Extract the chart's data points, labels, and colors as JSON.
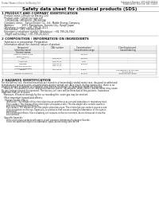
{
  "bg_color": "#ffffff",
  "header_left": "Product Name: Lithium Ion Battery Cell",
  "header_right_l1": "Substance Number: SDS-049-000016",
  "header_right_l2": "Established / Revision: Dec.7.2010",
  "title": "Safety data sheet for chemical products (SDS)",
  "section1_title": "1 PRODUCT AND COMPANY IDENTIFICATION",
  "section1_lines": [
    "  · Product name: Lithium Ion Battery Cell",
    "  · Product code: Cylindrical-type cell",
    "     (UR18650A, UR18650S, UR18650A)",
    "  · Company name:   Sanyo Electric Co., Ltd., Mobile Energy Company",
    "  · Address:           2001, Kamionbara, Sumoto-City, Hyogo, Japan",
    "  · Telephone number:  +81-799-26-4111",
    "  · Fax number:  +81-799-26-4129",
    "  · Emergency telephone number (Weekdays): +81-799-26-3962",
    "     (Night and holiday): +81-799-26-4101"
  ],
  "section2_title": "2 COMPOSITION / INFORMATION ON INGREDIENTS",
  "section2_sub": "  · Substance or preparation: Preparation",
  "section2_sub2": "  · Information about the chemical nature of product:",
  "table_headers": [
    "Component\n(chemical name)",
    "CAS number",
    "Concentration /\nConcentration range",
    "Classification and\nhazard labeling"
  ],
  "table_col_header": "Several names",
  "table_rows": [
    [
      "Lithium cobalt oxide\n(LiMn/CoO[x])",
      "-",
      "30-60%",
      "-"
    ],
    [
      "Iron",
      "7439-89-6",
      "10-20%",
      "-"
    ],
    [
      "Aluminum",
      "7429-90-5",
      "2-8%",
      "-"
    ],
    [
      "Graphite\n(Natural graphite)\n(Artificial graphite)",
      "7782-42-5\n7782-42-5",
      "10-25%",
      "-"
    ],
    [
      "Copper",
      "7440-50-8",
      "5-15%",
      "Sensitization of the skin\ngroup No.2"
    ],
    [
      "Organic electrolyte",
      "-",
      "10-20%",
      "Inflammable liquid"
    ]
  ],
  "section3_title": "3 HAZARDS IDENTIFICATION",
  "section3_body_lines": [
    "For the battery cell, chemical materials are stored in a hermetically sealed metal case, designed to withstand",
    "temperatures and pressures-concentrations during normal use. As a result, during normal use, there is no",
    "physical danger of ignition or explosion and there is no danger of hazardous materials leakage.",
    "   However, if exposed to a fire, added mechanical shocks, decompose, when electric alarms other may cause.",
    "By gas leakage cannot be operated. The battery cell case will be breached of fire-patterns, hazardous",
    "materials may be released.",
    "   Moreover, if heated strongly by the surrounding fire, some gas may be emitted."
  ],
  "section3_sub1": "  · Most important hazard and effects:",
  "section3_human": "     Human health effects:",
  "section3_human_lines": [
    "        Inhalation: The release of the electrolyte has an anesthesia action and stimulates in respiratory tract.",
    "        Skin contact: The release of the electrolyte stimulates a skin. The electrolyte skin contact causes a",
    "        sore and stimulation on the skin.",
    "        Eye contact: The release of the electrolyte stimulates eyes. The electrolyte eye contact causes a sore",
    "        and stimulation on the eye. Especially, a substance that causes a strong inflammation of the eyes is",
    "        cautioned.",
    "        Environmental effects: Since a battery cell remains in the environment, do not throw out it into the",
    "        environment."
  ],
  "section3_specific": "  · Specific hazards:",
  "section3_specific_lines": [
    "        If the electrolyte contacts with water, it will generate detrimental hydrogen fluoride.",
    "        Since the said electrolyte is inflammable liquid, do not bring close to fire."
  ],
  "text_color": "#222222",
  "line_color": "#999999",
  "title_color": "#111111"
}
